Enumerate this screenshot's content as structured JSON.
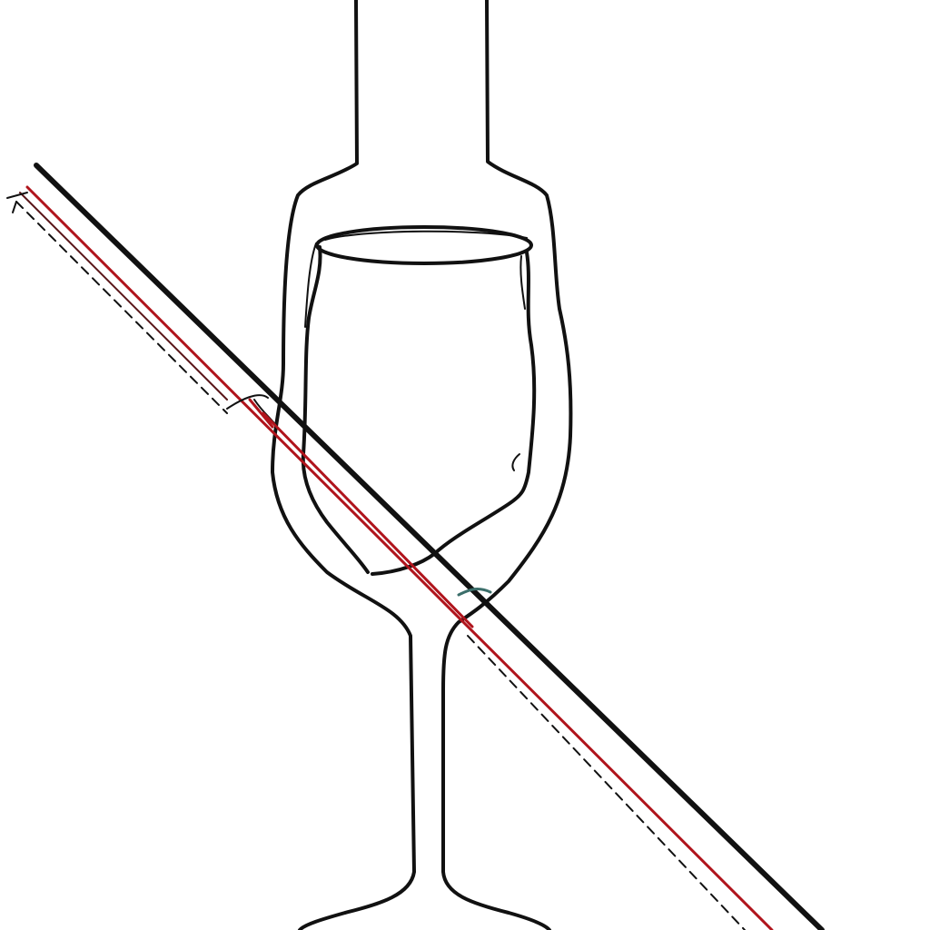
{
  "colors": {
    "background": "#ffffff",
    "ink": "#111111",
    "accent_red": "#b0141c",
    "accent_dark_red": "#5a1518",
    "teal_tick": "#3b6e6a"
  },
  "drawing": {
    "subject": "bottle-and-wine-glass-line-sketch",
    "elements": [
      "bottle-outline",
      "wine-glass-outline",
      "diagonal-rod"
    ]
  }
}
